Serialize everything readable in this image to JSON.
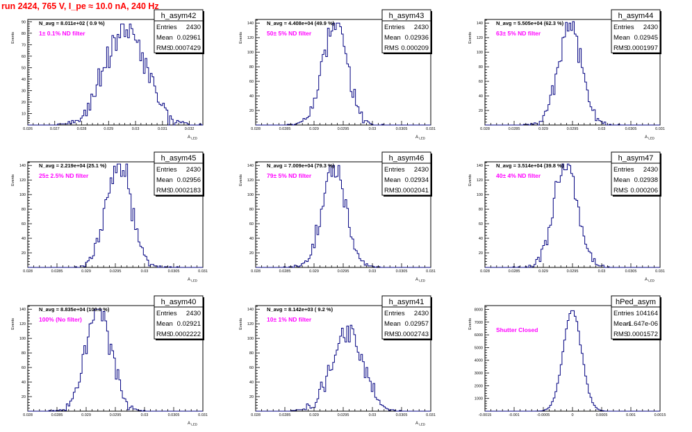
{
  "header": {
    "title": "run 2424,   765 V, I_pe ≈ 10.0 nA, 240 Hz"
  },
  "colors": {
    "histogram": "#000080",
    "annotation": "#ff00ff",
    "title": "#ff0000",
    "frame": "#000000"
  },
  "chart_data": [
    {
      "type": "histogram",
      "name": "h_asym42",
      "nav": "N_avg = 8.011e+02 ( 0.9 %)",
      "filter": "1± 0.1% ND filter",
      "stats": [
        [
          "Entries",
          "2430"
        ],
        [
          "Mean",
          "0.02961"
        ],
        [
          "RMS",
          "0.0007429"
        ]
      ],
      "ylabel": "Events",
      "xlabel": "A_LED",
      "xlim": [
        0.026,
        0.0325
      ],
      "ylim": [
        0,
        92
      ],
      "xticks": [
        "0.026",
        "0.027",
        "0.028",
        "0.029",
        "0.03",
        "0.031",
        "0.032"
      ],
      "yticks": [
        "10",
        "20",
        "30",
        "40",
        "50",
        "60",
        "70",
        "80",
        "90"
      ],
      "mean": 0.02961,
      "rms": 0.0007429,
      "entries": 2430,
      "peak": 88
    },
    {
      "type": "histogram",
      "name": "h_asym43",
      "nav": "N_avg = 4.408e+04 (49.9 %)",
      "filter": "50± 5% ND filter",
      "stats": [
        [
          "Entries",
          "2430"
        ],
        [
          "Mean",
          "0.02936"
        ],
        [
          "RMS",
          "0.000209"
        ]
      ],
      "ylabel": "Events",
      "xlabel": "A_LED",
      "xlim": [
        0.028,
        0.031
      ],
      "ylim": [
        0,
        145
      ],
      "xticks": [
        "0.028",
        "0.0285",
        "0.029",
        "0.0295",
        "0.03",
        "0.0305",
        "0.031"
      ],
      "yticks": [
        "20",
        "40",
        "60",
        "80",
        "100",
        "120",
        "140"
      ],
      "mean": 0.02936,
      "rms": 0.000209,
      "entries": 2430,
      "peak": 140
    },
    {
      "type": "histogram",
      "name": "h_asym44",
      "nav": "N_avg = 5.505e+04 (62.3 %)",
      "filter": "63± 5% ND filter",
      "stats": [
        [
          "Entries",
          "2430"
        ],
        [
          "Mean",
          "0.02945"
        ],
        [
          "RMS",
          "0.0001997"
        ]
      ],
      "ylabel": "Events",
      "xlabel": "A_LED",
      "xlim": [
        0.028,
        0.031
      ],
      "ylim": [
        0,
        145
      ],
      "xticks": [
        "0.028",
        "0.0285",
        "0.029",
        "0.0295",
        "0.03",
        "0.0305",
        "0.031"
      ],
      "yticks": [
        "20",
        "40",
        "60",
        "80",
        "100",
        "120",
        "140"
      ],
      "mean": 0.02945,
      "rms": 0.0001997,
      "entries": 2430,
      "peak": 142
    },
    {
      "type": "histogram",
      "name": "h_asym45",
      "nav": "N_avg = 2.219e+04 (25.1 %)",
      "filter": "25± 2.5% ND filter",
      "stats": [
        [
          "Entries",
          "2430"
        ],
        [
          "Mean",
          "0.02956"
        ],
        [
          "RMS",
          "0.0002183"
        ]
      ],
      "ylabel": "Events",
      "xlabel": "A_LED",
      "xlim": [
        0.028,
        0.031
      ],
      "ylim": [
        0,
        145
      ],
      "xticks": [
        "0.028",
        "0.0285",
        "0.029",
        "0.0295",
        "0.03",
        "0.0305",
        "0.031"
      ],
      "yticks": [
        "20",
        "40",
        "60",
        "80",
        "100",
        "120",
        "140"
      ],
      "mean": 0.02956,
      "rms": 0.0002183,
      "entries": 2430,
      "peak": 142
    },
    {
      "type": "histogram",
      "name": "h_asym46",
      "nav": "N_avg = 7.009e+04 (79.3 %)",
      "filter": "79± 5% ND filter",
      "stats": [
        [
          "Entries",
          "2430"
        ],
        [
          "Mean",
          "0.02934"
        ],
        [
          "RMS",
          "0.0002041"
        ]
      ],
      "ylabel": "Events",
      "xlabel": "A_LED",
      "xlim": [
        0.028,
        0.031
      ],
      "ylim": [
        0,
        145
      ],
      "xticks": [
        "0.028",
        "0.0285",
        "0.029",
        "0.0295",
        "0.03",
        "0.0305",
        "0.031"
      ],
      "yticks": [
        "20",
        "40",
        "60",
        "80",
        "100",
        "120",
        "140"
      ],
      "mean": 0.02934,
      "rms": 0.0002041,
      "entries": 2430,
      "peak": 140
    },
    {
      "type": "histogram",
      "name": "h_asym47",
      "nav": "N_avg = 3.514e+04 (39.8 %)",
      "filter": "40± 4% ND filter",
      "stats": [
        [
          "Entries",
          "2430"
        ],
        [
          "Mean",
          "0.02938"
        ],
        [
          "RMS",
          "0.000206"
        ]
      ],
      "ylabel": "Events",
      "xlabel": "A_LED",
      "xlim": [
        0.028,
        0.031
      ],
      "ylim": [
        0,
        145
      ],
      "xticks": [
        "0.028",
        "0.0285",
        "0.029",
        "0.0295",
        "0.03",
        "0.0305",
        "0.031"
      ],
      "yticks": [
        "20",
        "40",
        "60",
        "80",
        "100",
        "120",
        "140"
      ],
      "mean": 0.02938,
      "rms": 0.000206,
      "entries": 2430,
      "peak": 142
    },
    {
      "type": "histogram",
      "name": "h_asym40",
      "nav": "N_avg = 8.835e+04 (100.0 %)",
      "filter": "100% (No filter)",
      "stats": [
        [
          "Entries",
          "2430"
        ],
        [
          "Mean",
          "0.02921"
        ],
        [
          "RMS",
          "0.0002222"
        ]
      ],
      "ylabel": "Events",
      "xlabel": "A_LED",
      "xlim": [
        0.028,
        0.031
      ],
      "ylim": [
        0,
        145
      ],
      "xticks": [
        "0.028",
        "0.0285",
        "0.029",
        "0.0295",
        "0.03",
        "0.0305",
        "0.031"
      ],
      "yticks": [
        "20",
        "40",
        "60",
        "80",
        "100",
        "120",
        "140"
      ],
      "mean": 0.02921,
      "rms": 0.0002222,
      "entries": 2430,
      "peak": 140
    },
    {
      "type": "histogram",
      "name": "h_asym41",
      "nav": "N_avg = 8.142e+03 ( 9.2 %)",
      "filter": "10± 1% ND filter",
      "stats": [
        [
          "Entries",
          "2430"
        ],
        [
          "Mean",
          "0.02957"
        ],
        [
          "RMS",
          "0.0002743"
        ]
      ],
      "ylabel": "Events",
      "xlabel": "A_LED",
      "xlim": [
        0.028,
        0.031
      ],
      "ylim": [
        0,
        145
      ],
      "xticks": [
        "0.028",
        "0.0285",
        "0.029",
        "0.0295",
        "0.03",
        "0.0305",
        "0.031"
      ],
      "yticks": [
        "20",
        "40",
        "60",
        "80",
        "100",
        "120",
        "140"
      ],
      "mean": 0.02957,
      "rms": 0.0002743,
      "entries": 2430,
      "peak": 118
    },
    {
      "type": "histogram",
      "name": "hPed_asym",
      "nav": "",
      "filter": "Shutter Closed",
      "stats": [
        [
          "Entries",
          "104164"
        ],
        [
          "Mean",
          "-1.647e-06"
        ],
        [
          "RMS",
          "0.0001572"
        ]
      ],
      "ylabel": "Events",
      "xlabel": "",
      "xlim": [
        -0.0015,
        0.0015
      ],
      "ylim": [
        0,
        8300
      ],
      "xticks": [
        "-0.0015",
        "-0.001",
        "-0.0005",
        "0",
        "0.0005",
        "0.001",
        "0.0015"
      ],
      "yticks": [
        "1000",
        "2000",
        "3000",
        "4000",
        "5000",
        "6000",
        "7000",
        "8000"
      ],
      "mean": -1.647e-06,
      "rms": 0.0001572,
      "entries": 104164,
      "peak": 7900
    }
  ]
}
